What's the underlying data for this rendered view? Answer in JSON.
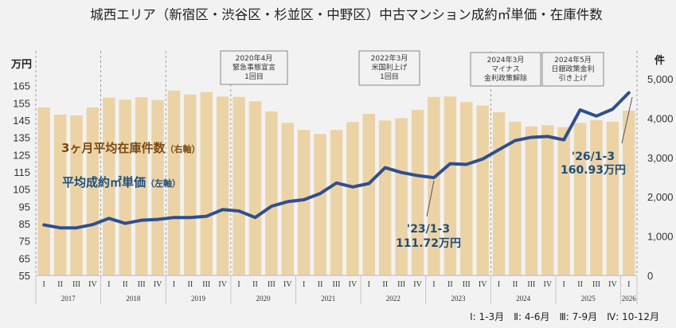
{
  "title": "城西エリア（新宿区・渋谷区・杉並区・中野区）中古マンション成約㎡単価・在庫件数",
  "chart_data": {
    "type": "bar+line",
    "title": "城西エリア（新宿区・渋谷区・杉並区・中野区）中古マンション成約㎡単価・在庫件数",
    "left_axis": {
      "unit": "万円",
      "ticks": [
        55,
        65,
        75,
        85,
        95,
        105,
        115,
        125,
        135,
        145,
        155,
        165
      ],
      "ylim": [
        55,
        169
      ]
    },
    "right_axis": {
      "unit": "件",
      "ticks": [
        "0",
        "1,000",
        "2,000",
        "3,000",
        "4,000",
        "5,000"
      ],
      "tick_values": [
        0,
        1000,
        2000,
        3000,
        4000,
        5000
      ],
      "ylim": [
        0,
        5000
      ]
    },
    "years": [
      "2017",
      "2018",
      "2019",
      "2020",
      "2021",
      "2022",
      "2023",
      "2024",
      "2025",
      "2026"
    ],
    "quarter_labels": [
      "I",
      "II",
      "III",
      "IV"
    ],
    "quarters": [
      "2017-I",
      "2017-II",
      "2017-III",
      "2017-IV",
      "2018-I",
      "2018-II",
      "2018-III",
      "2018-IV",
      "2019-I",
      "2019-II",
      "2019-III",
      "2019-IV",
      "2020-I",
      "2020-II",
      "2020-III",
      "2020-IV",
      "2021-I",
      "2021-II",
      "2021-III",
      "2021-IV",
      "2022-I",
      "2022-II",
      "2022-III",
      "2022-IV",
      "2023-I",
      "2023-II",
      "2023-III",
      "2023-IV",
      "2024-I",
      "2024-II",
      "2024-III",
      "2024-IV",
      "2025-I",
      "2025-II",
      "2025-III",
      "2025-IV",
      "2026-I"
    ],
    "series": [
      {
        "name": "3ヶ月平均在庫件数",
        "axis_note": "（右軸）",
        "type": "bar",
        "color": "#ecd3a6",
        "values": [
          4270,
          4090,
          4070,
          4270,
          4520,
          4470,
          4530,
          4460,
          4700,
          4600,
          4660,
          4550,
          4540,
          4430,
          4170,
          3880,
          3700,
          3600,
          3700,
          3900,
          4110,
          3940,
          4000,
          4210,
          4540,
          4550,
          4410,
          4320,
          4150,
          3910,
          3790,
          3820,
          3770,
          3880,
          3950,
          3910,
          4190
        ]
      },
      {
        "name": "平均成約㎡単価",
        "axis_note": "（左軸）",
        "type": "line",
        "color": "#2f4f8f",
        "values": [
          84.3,
          82.6,
          82.6,
          84.5,
          88.1,
          85.2,
          87.0,
          87.5,
          88.6,
          88.6,
          89.3,
          93.2,
          92.4,
          88.6,
          95.1,
          97.8,
          98.9,
          102.5,
          108.6,
          106.3,
          108.3,
          117.5,
          114.7,
          112.9,
          111.72,
          119.8,
          119.4,
          122.5,
          127.9,
          133.2,
          135.1,
          135.6,
          133.6,
          151.0,
          147.4,
          151.4,
          160.93
        ]
      }
    ],
    "annotations": [
      {
        "lines": [
          "2020年4月",
          "緊急事態宣言",
          "1回目"
        ]
      },
      {
        "lines": [
          "2022年3月",
          "米国利上げ",
          "1回目"
        ]
      },
      {
        "lines": [
          "2024年3月",
          "マイナス",
          "金利政策解除"
        ]
      },
      {
        "lines": [
          "2024年5月",
          "日銀政策金利",
          "引き上げ"
        ]
      }
    ],
    "callouts": [
      {
        "period": "'23/1-3",
        "value": "111.72万円"
      },
      {
        "period": "'26/1-3",
        "value": "160.93万円"
      }
    ],
    "footnote": "Ⅰ: 1-3月　Ⅱ: 4-6月　Ⅲ: 7-9月　Ⅳ: 10-12月",
    "grid": false
  }
}
